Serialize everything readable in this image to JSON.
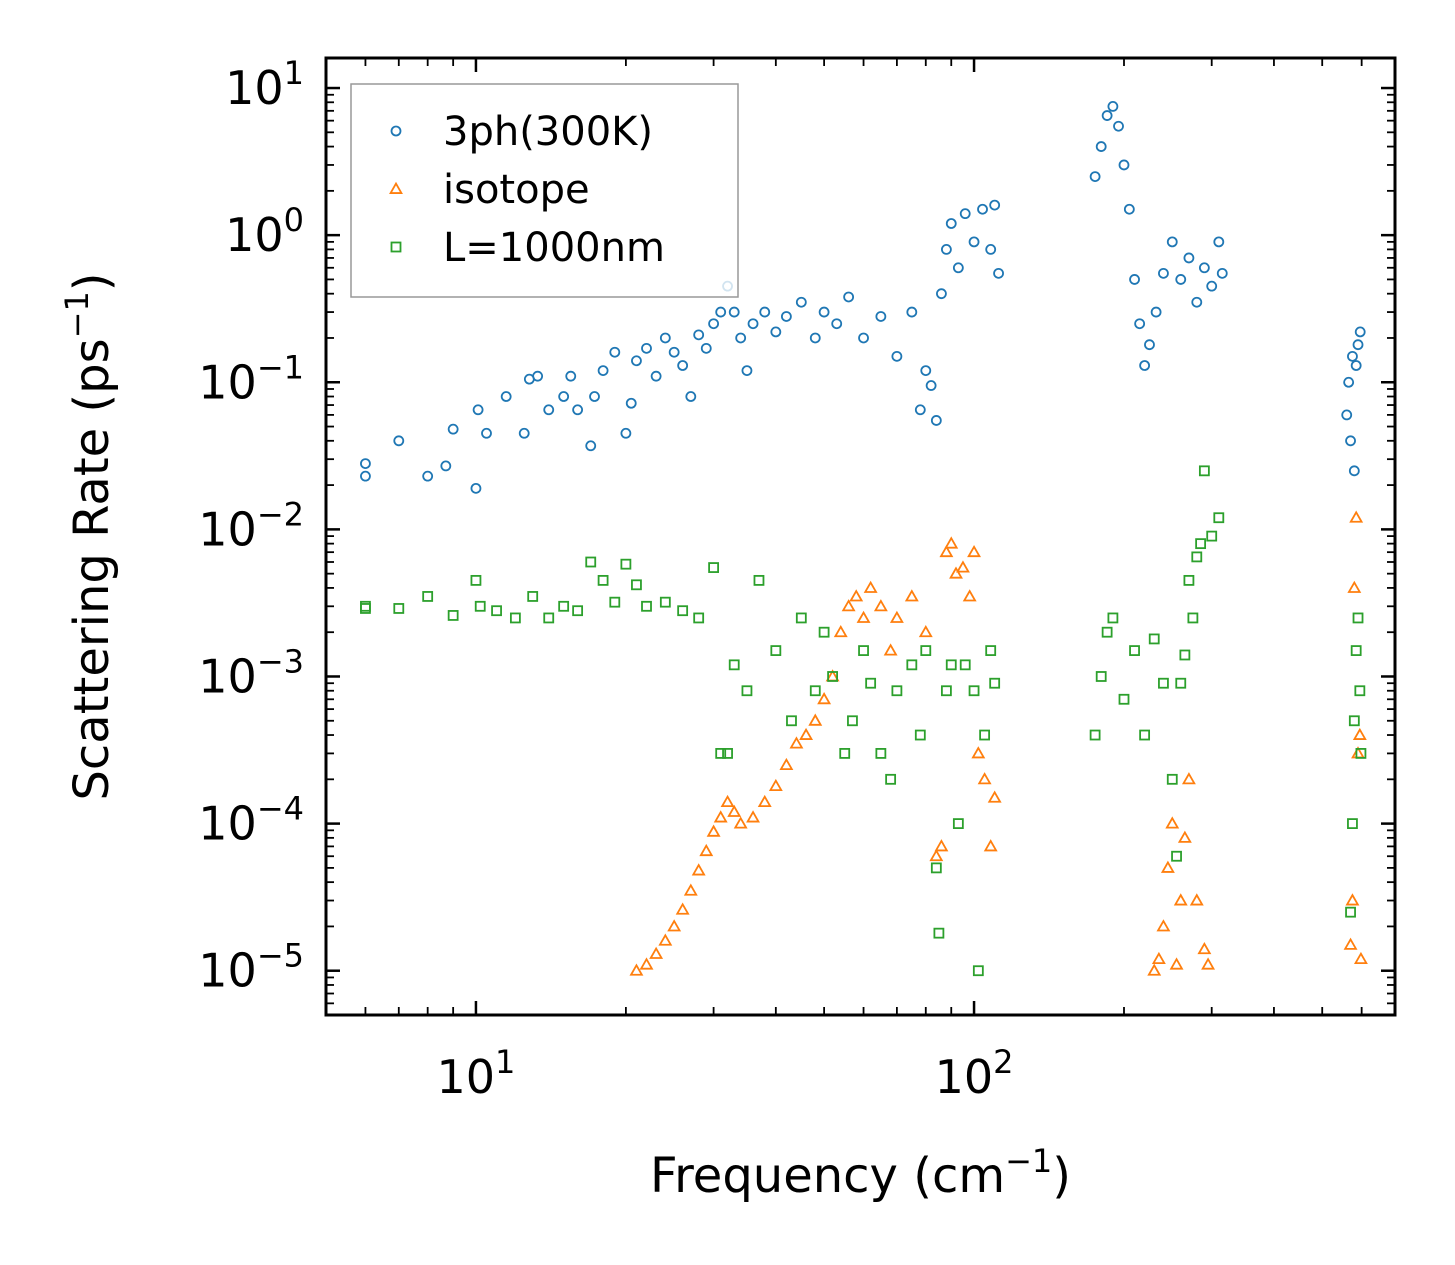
{
  "chart_data": {
    "type": "scatter",
    "title": "",
    "xlabel": {
      "main": "Frequency (cm",
      "sup": "−1",
      "tail": ")"
    },
    "ylabel": {
      "main": "Scattering Rate (ps",
      "sup": "−1",
      "tail": ")"
    },
    "xscale": "log",
    "yscale": "log",
    "xlim": [
      5,
      700
    ],
    "ylim": [
      5e-06,
      16
    ],
    "xticks": [
      {
        "value": 10,
        "base": "10",
        "exp": "1"
      },
      {
        "value": 100,
        "base": "10",
        "exp": "2"
      }
    ],
    "yticks": [
      {
        "value": 10,
        "base": "10",
        "exp": "1"
      },
      {
        "value": 1,
        "base": "10",
        "exp": "0"
      },
      {
        "value": 0.1,
        "base": "10",
        "exp": "−1"
      },
      {
        "value": 0.01,
        "base": "10",
        "exp": "−2"
      },
      {
        "value": 0.001,
        "base": "10",
        "exp": "−3"
      },
      {
        "value": 0.0001,
        "base": "10",
        "exp": "−4"
      },
      {
        "value": 1e-05,
        "base": "10",
        "exp": "−5"
      }
    ],
    "legend_position": "top-left",
    "series": [
      {
        "name": "3ph(300K)",
        "marker": "circle",
        "color": "#1f77b4",
        "points": [
          [
            6.0,
            0.028
          ],
          [
            6.0,
            0.023
          ],
          [
            7.0,
            0.04
          ],
          [
            8.0,
            0.023
          ],
          [
            8.7,
            0.027
          ],
          [
            9.0,
            0.048
          ],
          [
            10.0,
            0.019
          ],
          [
            10.1,
            0.065
          ],
          [
            10.5,
            0.045
          ],
          [
            11.5,
            0.08
          ],
          [
            12.5,
            0.045
          ],
          [
            12.8,
            0.105
          ],
          [
            13.3,
            0.11
          ],
          [
            14.0,
            0.065
          ],
          [
            15.0,
            0.08
          ],
          [
            15.5,
            0.11
          ],
          [
            16.0,
            0.065
          ],
          [
            17.0,
            0.037
          ],
          [
            17.3,
            0.08
          ],
          [
            18.0,
            0.12
          ],
          [
            19.0,
            0.16
          ],
          [
            20.0,
            0.045
          ],
          [
            20.5,
            0.072
          ],
          [
            21.0,
            0.14
          ],
          [
            22.0,
            0.17
          ],
          [
            23.0,
            0.11
          ],
          [
            24.0,
            0.2
          ],
          [
            25.0,
            0.16
          ],
          [
            26.0,
            0.13
          ],
          [
            27.0,
            0.08
          ],
          [
            28.0,
            0.21
          ],
          [
            29.0,
            0.17
          ],
          [
            30.0,
            0.25
          ],
          [
            31.0,
            0.3
          ],
          [
            32.0,
            0.45
          ],
          [
            33.0,
            0.3
          ],
          [
            34.0,
            0.2
          ],
          [
            35.0,
            0.12
          ],
          [
            36.0,
            0.25
          ],
          [
            38.0,
            0.3
          ],
          [
            40.0,
            0.22
          ],
          [
            42.0,
            0.28
          ],
          [
            45.0,
            0.35
          ],
          [
            48.0,
            0.2
          ],
          [
            50.0,
            0.3
          ],
          [
            53.0,
            0.25
          ],
          [
            56.0,
            0.38
          ],
          [
            60.0,
            0.2
          ],
          [
            65.0,
            0.28
          ],
          [
            70.0,
            0.15
          ],
          [
            75.0,
            0.3
          ],
          [
            78.0,
            0.065
          ],
          [
            80.0,
            0.12
          ],
          [
            82.0,
            0.095
          ],
          [
            84.0,
            0.055
          ],
          [
            86.0,
            0.4
          ],
          [
            88.0,
            0.8
          ],
          [
            90.0,
            1.2
          ],
          [
            93.0,
            0.6
          ],
          [
            96.0,
            1.4
          ],
          [
            100.0,
            0.9
          ],
          [
            104.0,
            1.5
          ],
          [
            108.0,
            0.8
          ],
          [
            110.0,
            1.6
          ],
          [
            112.0,
            0.55
          ],
          [
            175.0,
            2.5
          ],
          [
            180.0,
            4.0
          ],
          [
            185.0,
            6.5
          ],
          [
            190.0,
            7.5
          ],
          [
            195.0,
            5.5
          ],
          [
            200.0,
            3.0
          ],
          [
            205.0,
            1.5
          ],
          [
            210.0,
            0.5
          ],
          [
            215.0,
            0.25
          ],
          [
            220.0,
            0.13
          ],
          [
            225.0,
            0.18
          ],
          [
            232.0,
            0.3
          ],
          [
            240.0,
            0.55
          ],
          [
            250.0,
            0.9
          ],
          [
            260.0,
            0.5
          ],
          [
            270.0,
            0.7
          ],
          [
            280.0,
            0.35
          ],
          [
            290.0,
            0.6
          ],
          [
            300.0,
            0.45
          ],
          [
            310.0,
            0.9
          ],
          [
            315.0,
            0.55
          ],
          [
            560.0,
            0.06
          ],
          [
            565.0,
            0.1
          ],
          [
            570.0,
            0.04
          ],
          [
            575.0,
            0.15
          ],
          [
            580.0,
            0.025
          ],
          [
            585.0,
            0.13
          ],
          [
            590.0,
            0.18
          ],
          [
            596.0,
            0.22
          ]
        ]
      },
      {
        "name": "isotope",
        "marker": "triangle",
        "color": "#ff7f0e",
        "points": [
          [
            21.0,
            1e-05
          ],
          [
            22.0,
            1.1e-05
          ],
          [
            23.0,
            1.3e-05
          ],
          [
            24.0,
            1.6e-05
          ],
          [
            25.0,
            2e-05
          ],
          [
            26.0,
            2.6e-05
          ],
          [
            27.0,
            3.5e-05
          ],
          [
            28.0,
            4.8e-05
          ],
          [
            29.0,
            6.5e-05
          ],
          [
            30.0,
            8.8e-05
          ],
          [
            31.0,
            0.00011
          ],
          [
            32.0,
            0.00014
          ],
          [
            33.0,
            0.00012
          ],
          [
            34.0,
            0.0001
          ],
          [
            36.0,
            0.00011
          ],
          [
            38.0,
            0.00014
          ],
          [
            40.0,
            0.00018
          ],
          [
            42.0,
            0.00025
          ],
          [
            44.0,
            0.00035
          ],
          [
            46.0,
            0.0004
          ],
          [
            48.0,
            0.0005
          ],
          [
            50.0,
            0.0007
          ],
          [
            52.0,
            0.001
          ],
          [
            54.0,
            0.002
          ],
          [
            56.0,
            0.003
          ],
          [
            58.0,
            0.0035
          ],
          [
            60.0,
            0.0025
          ],
          [
            62.0,
            0.004
          ],
          [
            65.0,
            0.003
          ],
          [
            68.0,
            0.0015
          ],
          [
            70.0,
            0.0025
          ],
          [
            75.0,
            0.0035
          ],
          [
            80.0,
            0.002
          ],
          [
            84.0,
            6e-05
          ],
          [
            86.0,
            7e-05
          ],
          [
            88.0,
            0.007
          ],
          [
            90.0,
            0.008
          ],
          [
            92.0,
            0.005
          ],
          [
            95.0,
            0.0055
          ],
          [
            98.0,
            0.0035
          ],
          [
            100.0,
            0.007
          ],
          [
            102.0,
            0.0003
          ],
          [
            105.0,
            0.0002
          ],
          [
            108.0,
            7e-05
          ],
          [
            110.0,
            0.00015
          ],
          [
            230.0,
            1e-05
          ],
          [
            235.0,
            1.2e-05
          ],
          [
            240.0,
            2e-05
          ],
          [
            245.0,
            5e-05
          ],
          [
            250.0,
            0.0001
          ],
          [
            255.0,
            1.1e-05
          ],
          [
            260.0,
            3e-05
          ],
          [
            265.0,
            8e-05
          ],
          [
            270.0,
            0.0002
          ],
          [
            280.0,
            3e-05
          ],
          [
            290.0,
            1.4e-05
          ],
          [
            295.0,
            1.1e-05
          ],
          [
            570.0,
            1.5e-05
          ],
          [
            575.0,
            3e-05
          ],
          [
            580.0,
            0.004
          ],
          [
            585.0,
            0.012
          ],
          [
            590.0,
            0.0003
          ],
          [
            595.0,
            0.0004
          ],
          [
            598.0,
            1.2e-05
          ]
        ]
      },
      {
        "name": "L=1000nm",
        "marker": "square",
        "color": "#2ca02c",
        "points": [
          [
            6.0,
            0.003
          ],
          [
            6.0,
            0.0029
          ],
          [
            7.0,
            0.0029
          ],
          [
            8.0,
            0.0035
          ],
          [
            9.0,
            0.0026
          ],
          [
            10.0,
            0.0045
          ],
          [
            10.2,
            0.003
          ],
          [
            11.0,
            0.0028
          ],
          [
            12.0,
            0.0025
          ],
          [
            13.0,
            0.0035
          ],
          [
            14.0,
            0.0025
          ],
          [
            15.0,
            0.003
          ],
          [
            16.0,
            0.0028
          ],
          [
            17.0,
            0.006
          ],
          [
            18.0,
            0.0045
          ],
          [
            19.0,
            0.0032
          ],
          [
            20.0,
            0.0058
          ],
          [
            21.0,
            0.0042
          ],
          [
            22.0,
            0.003
          ],
          [
            24.0,
            0.0032
          ],
          [
            26.0,
            0.0028
          ],
          [
            28.0,
            0.0025
          ],
          [
            30.0,
            0.0055
          ],
          [
            31.0,
            0.0003
          ],
          [
            32.0,
            0.0003
          ],
          [
            33.0,
            0.0012
          ],
          [
            35.0,
            0.0008
          ],
          [
            37.0,
            0.0045
          ],
          [
            40.0,
            0.0015
          ],
          [
            43.0,
            0.0005
          ],
          [
            45.0,
            0.0025
          ],
          [
            48.0,
            0.0008
          ],
          [
            50.0,
            0.002
          ],
          [
            52.0,
            0.001
          ],
          [
            55.0,
            0.0003
          ],
          [
            57.0,
            0.0005
          ],
          [
            60.0,
            0.0015
          ],
          [
            62.0,
            0.0009
          ],
          [
            65.0,
            0.0003
          ],
          [
            68.0,
            0.0002
          ],
          [
            70.0,
            0.0008
          ],
          [
            75.0,
            0.0012
          ],
          [
            78.0,
            0.0004
          ],
          [
            80.0,
            0.0015
          ],
          [
            84.0,
            5e-05
          ],
          [
            85.0,
            1.8e-05
          ],
          [
            88.0,
            0.0008
          ],
          [
            90.0,
            0.0012
          ],
          [
            93.0,
            0.0001
          ],
          [
            96.0,
            0.0012
          ],
          [
            100.0,
            0.0008
          ],
          [
            102.0,
            1e-05
          ],
          [
            105.0,
            0.0004
          ],
          [
            108.0,
            0.0015
          ],
          [
            110.0,
            0.0009
          ],
          [
            175.0,
            0.0004
          ],
          [
            180.0,
            0.001
          ],
          [
            185.0,
            0.002
          ],
          [
            190.0,
            0.0025
          ],
          [
            200.0,
            0.0007
          ],
          [
            210.0,
            0.0015
          ],
          [
            220.0,
            0.0004
          ],
          [
            230.0,
            0.0018
          ],
          [
            240.0,
            0.0009
          ],
          [
            250.0,
            0.0002
          ],
          [
            255.0,
            6e-05
          ],
          [
            260.0,
            0.0009
          ],
          [
            265.0,
            0.0014
          ],
          [
            270.0,
            0.0045
          ],
          [
            275.0,
            0.0025
          ],
          [
            280.0,
            0.0065
          ],
          [
            285.0,
            0.008
          ],
          [
            290.0,
            0.025
          ],
          [
            300.0,
            0.009
          ],
          [
            310.0,
            0.012
          ],
          [
            570.0,
            2.5e-05
          ],
          [
            575.0,
            0.0001
          ],
          [
            580.0,
            0.0005
          ],
          [
            585.0,
            0.0015
          ],
          [
            590.0,
            0.0025
          ],
          [
            595.0,
            0.0008
          ],
          [
            598.0,
            0.0003
          ]
        ]
      }
    ]
  }
}
